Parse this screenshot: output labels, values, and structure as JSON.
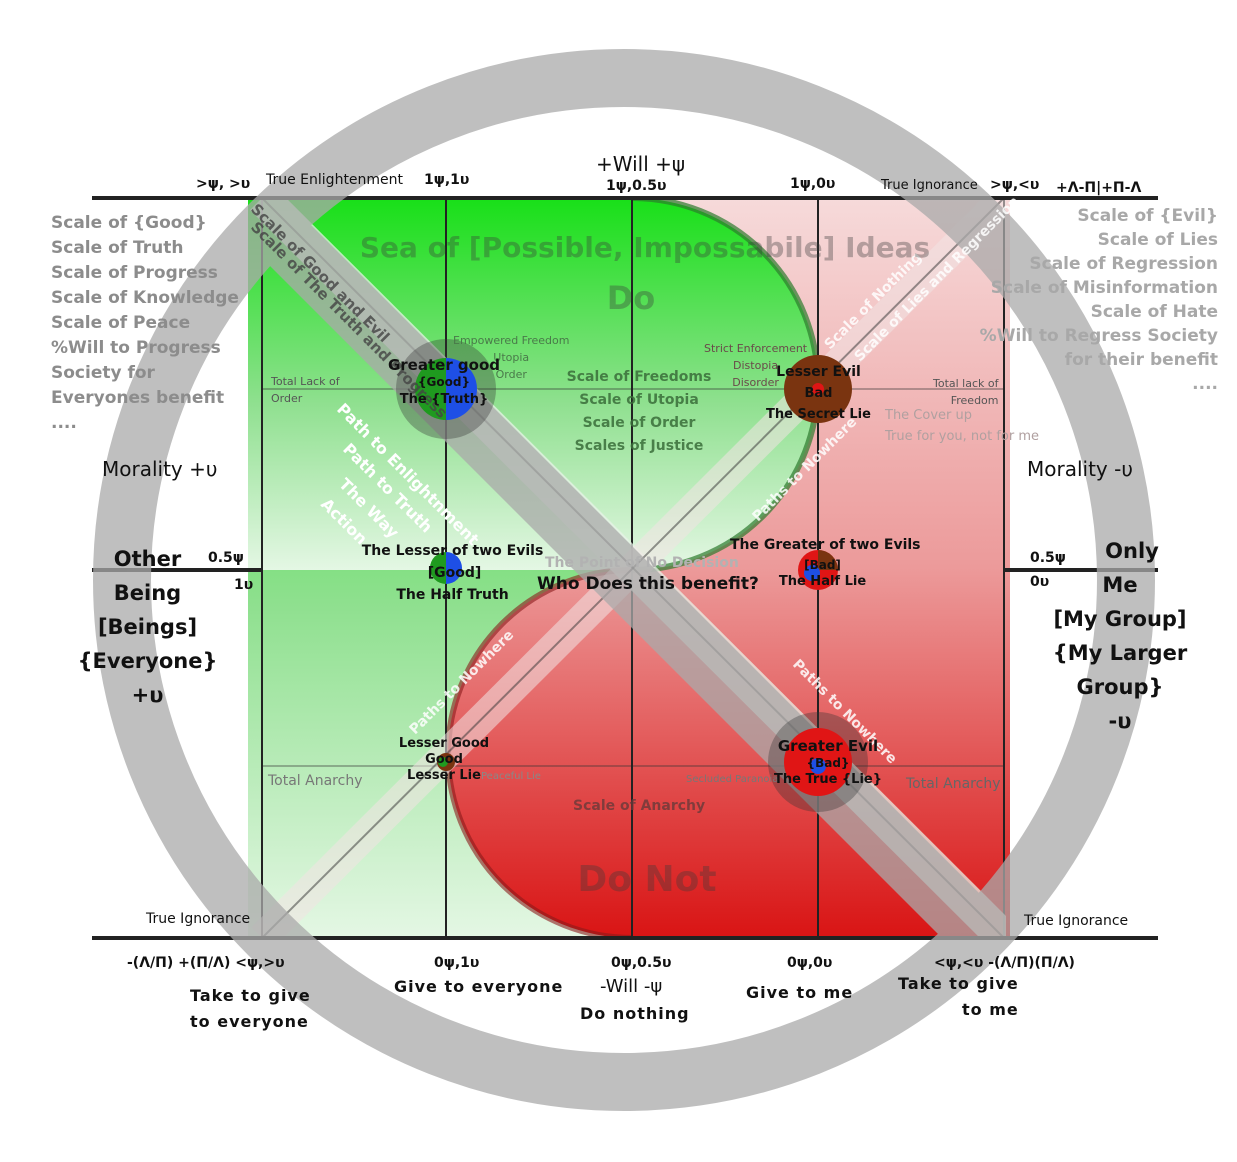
{
  "top": {
    "will_plus": "+Will +ψ",
    "tl_corner": ">ψ, >υ",
    "true_enlightenment": "True Enlightenment",
    "q1": "1ψ,1υ",
    "q2": "1ψ,0.5υ",
    "q3": "1ψ,0υ",
    "true_ignorance": "True Ignorance",
    "tr_corner": ">ψ,<υ",
    "tr_formula": "+Λ-Π|+Π-Λ"
  },
  "bottom": {
    "bl_formula": "-(Λ/Π) +(Π/Λ) <ψ,>υ",
    "q1": "0ψ,1υ",
    "q2": "0ψ,0.5υ",
    "q3": "0ψ,0υ",
    "br_formula": "<ψ,<υ -(Λ/Π)(Π/Λ)",
    "take_give_everyone": [
      "Take  to give",
      "to everyone"
    ],
    "give_everyone": "Give to everyone",
    "will_minus": "-Will -ψ",
    "do_nothing": "Do nothing",
    "give_me": "Give to me",
    "take_give_me": [
      "Take to give",
      "to me"
    ]
  },
  "left_scales": [
    "Scale of {Good}",
    "Scale of Truth",
    "Scale of Progress",
    "Scale of Knowledge",
    "Scale of Peace",
    "%Will to Progress",
    "Society for",
    "Everyones benefit",
    "...."
  ],
  "right_scales": [
    "Scale of {Evil}",
    "Scale of Lies",
    "Scale of Regression",
    "Scale of Misinformation",
    "Scale of Hate",
    "%Will to Regress Society",
    "for their benefit",
    "...."
  ],
  "morality_left": "Morality +υ",
  "morality_right": "Morality -υ",
  "left_side": {
    "mid": "0.5ψ",
    "one": "1υ",
    "lines": [
      "Other",
      "Being",
      "[Beings]",
      "{Everyone}",
      "+υ"
    ]
  },
  "right_side": {
    "mid": "0.5ψ",
    "zero": "0υ",
    "lines": [
      "Only",
      "Me",
      "[My Group]",
      "{My Larger Group}",
      "-υ"
    ]
  },
  "corners": {
    "bl": "True Ignorance",
    "br": "True Ignorance"
  },
  "inner": {
    "sea": "Sea of [Possible, Impossabile] Ideas",
    "do": "Do",
    "do_not": "Do Not",
    "scale_good_evil": "Scale of Good and Evil",
    "scale_truth_progress": "Scale of The Truth and Progress",
    "scale_nothing": "Scale of Nothing",
    "scale_lies_regression": "Scale of Lies and Regression",
    "total_lack_order": [
      "Total Lack of",
      "Order"
    ],
    "total_lack_freedom": [
      "Total lack of",
      "Freedom"
    ],
    "empowered": [
      "Empowered Freedom",
      "Utopia",
      "Order"
    ],
    "strict": [
      "Strict Enforcement",
      "Distopia",
      "Disorder"
    ],
    "center_scales": [
      "Scale of Freedoms",
      "Scale of Utopia",
      "Scale of Order",
      "Scales of Justice"
    ],
    "paths_left": [
      "Path to Enlightnment",
      "Path to Truth",
      "The Way",
      "Action"
    ],
    "paths_nowhere_up": "Paths to Nowhere",
    "paths_nowhere_low": "Paths to Nowhere",
    "paths_nowhere_right": "Paths to Nowhere",
    "cover_up": [
      "The Cover up",
      "True for you, not for me"
    ],
    "no_decision": "The Point of No Decision",
    "who_benefits": "Who Does this benefit?",
    "total_anarchy_l": "Total Anarchy",
    "total_anarchy_r": "Total Anarchy",
    "peaceful_lie": "Peaceful Lie",
    "secluded": "Secluded Paranoia",
    "scale_anarchy": "Scale of Anarchy"
  },
  "nodes": {
    "greater_good": [
      "Greater good",
      "{Good}",
      "The {Truth}"
    ],
    "lesser_evil": [
      "Lesser Evil",
      "Bad",
      "The Secret Lie"
    ],
    "lesser_two_evils": [
      "The Lesser of two Evils",
      "[Good]",
      "The Half Truth"
    ],
    "greater_two_evils": [
      "The Greater of two Evils",
      "[Bad]",
      "The Half Lie"
    ],
    "lesser_good": [
      "Lesser Good",
      "Good",
      "Lesser Lie"
    ],
    "greater_evil": [
      "Greater Evil",
      "{Bad}",
      "The True {Lie}"
    ]
  },
  "colors": {
    "green": "#19e019",
    "red": "#e01515",
    "blue": "#1e4fe6",
    "brown": "#7a3410",
    "grey": "#b7b7b7"
  }
}
